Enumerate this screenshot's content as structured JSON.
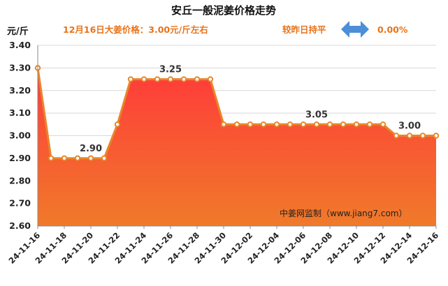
{
  "chart_data": {
    "type": "area",
    "title": "安丘一般泥姜价格走势",
    "ylabel": "元/斤",
    "price_text": "12月16日大姜价格：3.00元/斤左右",
    "compare_label": "较昨日持平",
    "change_text": "0.00%",
    "watermark": "中姜网监制（www.jiang7.com）",
    "ylim": [
      2.6,
      3.4
    ],
    "yticks": [
      "2.60",
      "2.70",
      "2.80",
      "2.90",
      "3.00",
      "3.10",
      "3.20",
      "3.30",
      "3.40"
    ],
    "xtick_labels": [
      "24-11-16",
      "24-11-18",
      "24-11-20",
      "24-11-22",
      "24-11-24",
      "24-11-26",
      "24-11-28",
      "24-11-30",
      "24-12-02",
      "24-12-04",
      "24-12-06",
      "24-12-08",
      "24-12-10",
      "24-12-12",
      "24-12-14",
      "24-12-16"
    ],
    "x": [
      "24-11-16",
      "24-11-17",
      "24-11-18",
      "24-11-19",
      "24-11-20",
      "24-11-21",
      "24-11-22",
      "24-11-23",
      "24-11-24",
      "24-11-25",
      "24-11-26",
      "24-11-27",
      "24-11-28",
      "24-11-29",
      "24-11-30",
      "24-12-01",
      "24-12-02",
      "24-12-03",
      "24-12-04",
      "24-12-05",
      "24-12-06",
      "24-12-07",
      "24-12-08",
      "24-12-09",
      "24-12-10",
      "24-12-11",
      "24-12-12",
      "24-12-13",
      "24-12-14",
      "24-12-15",
      "24-12-16"
    ],
    "series": [
      {
        "values": [
          3.3,
          2.9,
          2.9,
          2.9,
          2.9,
          2.9,
          3.05,
          3.25,
          3.25,
          3.25,
          3.25,
          3.25,
          3.25,
          3.25,
          3.05,
          3.05,
          3.05,
          3.05,
          3.05,
          3.05,
          3.05,
          3.05,
          3.05,
          3.05,
          3.05,
          3.05,
          3.05,
          3.0,
          3.0,
          3.0,
          3.0
        ]
      }
    ],
    "data_labels": [
      {
        "x": "24-11-20",
        "value": 2.9,
        "text": "2.90"
      },
      {
        "x": "24-11-26",
        "value": 3.25,
        "text": "3.25"
      },
      {
        "x": "24-12-07",
        "value": 3.05,
        "text": "3.05"
      },
      {
        "x": "24-12-14",
        "value": 3.0,
        "text": "3.00"
      }
    ],
    "grid": true,
    "colors": {
      "line": "#e8862a",
      "fill_top": "#ff3a3a",
      "fill_bottom": "#f07a2a",
      "accent_text": "#e8731a",
      "arrow": "#4a8fd8"
    },
    "icons": {
      "change_arrow": "double-arrow-icon"
    }
  }
}
